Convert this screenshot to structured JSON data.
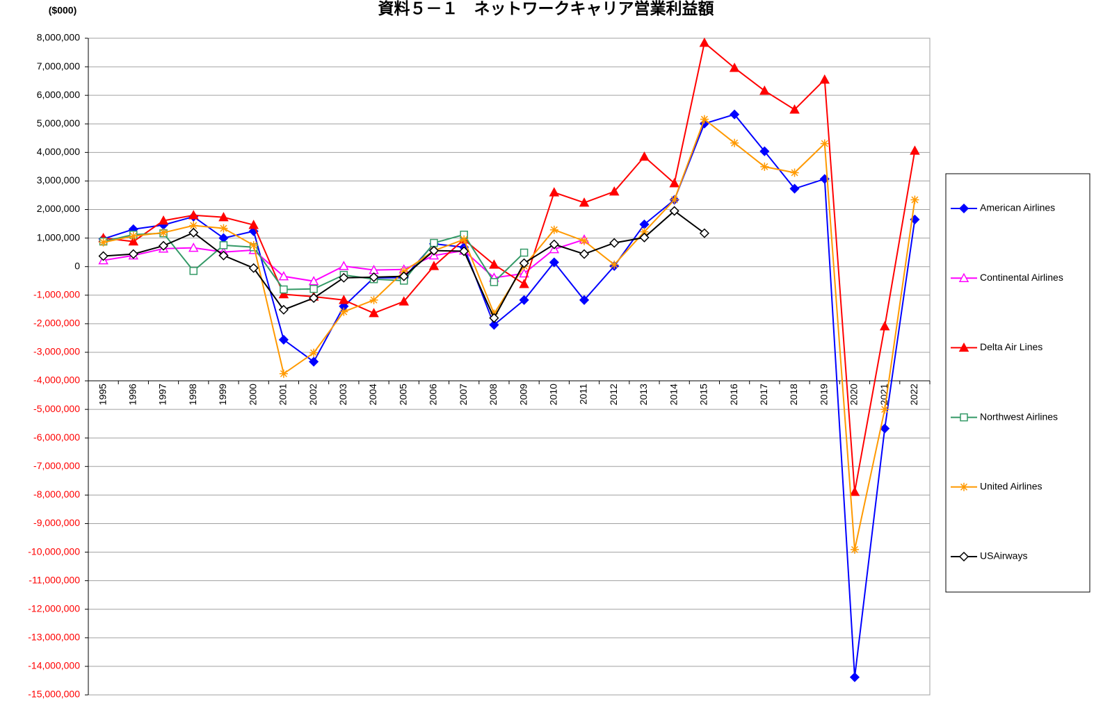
{
  "chart_data": {
    "type": "line",
    "title": "資料５－１　ネットワークキャリア営業利益額",
    "y_unit_label": "($000)",
    "categories": [
      "1995",
      "1996",
      "1997",
      "1998",
      "1999",
      "2000",
      "2001",
      "2002",
      "2003",
      "2004",
      "2005",
      "2006",
      "2007",
      "2008",
      "2009",
      "2010",
      "2011",
      "2012",
      "2013",
      "2014",
      "2015",
      "2016",
      "2017",
      "2018",
      "2019",
      "2020",
      "2021",
      "2022"
    ],
    "series": [
      {
        "name": "American Airlines",
        "color": "#0000ff",
        "marker": "diamond",
        "marker_fill": true,
        "values": [
          970000,
          1310000,
          1460000,
          1750000,
          1000000,
          1240000,
          -2560000,
          -3330000,
          -1390000,
          -390000,
          -390000,
          800000,
          680000,
          -2040000,
          -1170000,
          150000,
          -1170000,
          20000,
          1480000,
          2340000,
          5010000,
          5330000,
          4040000,
          2730000,
          3070000,
          -14380000,
          -5670000,
          1650000
        ]
      },
      {
        "name": "Continental Airlines",
        "color": "#ff00ff",
        "marker": "triangle",
        "marker_fill": false,
        "values": [
          220000,
          390000,
          630000,
          660000,
          510000,
          580000,
          -340000,
          -510000,
          20000,
          -120000,
          -100000,
          390000,
          560000,
          -390000,
          -240000,
          610000,
          950000,
          null,
          null,
          null,
          null,
          null,
          null,
          null,
          null,
          null,
          null,
          null
        ]
      },
      {
        "name": "Delta Air Lines",
        "color": "#ff0000",
        "marker": "triangle",
        "marker_fill": true,
        "values": [
          1000000,
          880000,
          1610000,
          1800000,
          1730000,
          1460000,
          -970000,
          -1050000,
          -1170000,
          -1630000,
          -1220000,
          20000,
          950000,
          70000,
          -610000,
          2600000,
          2240000,
          2630000,
          3850000,
          2920000,
          7840000,
          6960000,
          6160000,
          5500000,
          6550000,
          -7890000,
          -2090000,
          4060000
        ]
      },
      {
        "name": "Northwest Airlines",
        "color": "#339966",
        "marker": "square",
        "marker_fill": false,
        "values": [
          880000,
          1120000,
          1170000,
          -150000,
          750000,
          680000,
          -800000,
          -780000,
          -290000,
          -440000,
          -490000,
          830000,
          1120000,
          -540000,
          490000,
          null,
          null,
          null,
          null,
          null,
          null,
          null,
          null,
          null,
          null,
          null,
          null,
          null
        ]
      },
      {
        "name": "United Airlines",
        "color": "#ff9900",
        "marker": "star",
        "marker_fill": false,
        "values": [
          850000,
          1070000,
          1190000,
          1440000,
          1340000,
          750000,
          -3750000,
          -3020000,
          -1580000,
          -1170000,
          -170000,
          560000,
          950000,
          -1650000,
          20000,
          1290000,
          900000,
          70000,
          1220000,
          2340000,
          5160000,
          4330000,
          3500000,
          3290000,
          4310000,
          -9910000,
          -5000000,
          2340000
        ]
      },
      {
        "name": "USAirways",
        "color": "#000000",
        "marker": "diamond",
        "marker_fill": false,
        "values": [
          370000,
          440000,
          730000,
          1190000,
          390000,
          -50000,
          -1510000,
          -1100000,
          -390000,
          -370000,
          -340000,
          560000,
          540000,
          -1800000,
          120000,
          780000,
          440000,
          830000,
          1020000,
          1950000,
          1170000,
          null,
          null,
          null,
          null,
          null,
          null,
          null
        ]
      }
    ],
    "ylim": [
      -15000000,
      8000000
    ],
    "yticks": [
      {
        "value": -15000000,
        "label": "-15,000,000"
      },
      {
        "value": -14000000,
        "label": "-14,000,000"
      },
      {
        "value": -13000000,
        "label": "-13,000,000"
      },
      {
        "value": -12000000,
        "label": "-12,000,000"
      },
      {
        "value": -11000000,
        "label": "-11,000,000"
      },
      {
        "value": -10000000,
        "label": "-10,000,000"
      },
      {
        "value": -9000000,
        "label": "-9,000,000"
      },
      {
        "value": -8000000,
        "label": "-8,000,000"
      },
      {
        "value": -7000000,
        "label": "-7,000,000"
      },
      {
        "value": -6000000,
        "label": "-6,000,000"
      },
      {
        "value": -5000000,
        "label": "-5,000,000"
      },
      {
        "value": -4000000,
        "label": "-4,000,000"
      },
      {
        "value": -3000000,
        "label": "-3,000,000"
      },
      {
        "value": -2000000,
        "label": "-2,000,000"
      },
      {
        "value": -1000000,
        "label": "-1,000,000"
      },
      0,
      {
        "value": 1000000,
        "label": "1,000,000"
      },
      {
        "value": 2000000,
        "label": "2,000,000"
      },
      {
        "value": 3000000,
        "label": "3,000,000"
      },
      {
        "value": 4000000,
        "label": "4,000,000"
      },
      {
        "value": 5000000,
        "label": "5,000,000"
      },
      {
        "value": 6000000,
        "label": "6,000,000"
      },
      {
        "value": 7000000,
        "label": "7,000,000"
      },
      {
        "value": 8000000,
        "label": "8,000,000"
      }
    ],
    "x_axis_at": -4000000,
    "negative_label_color": "#ff0000",
    "grid": true,
    "legend": "right"
  }
}
